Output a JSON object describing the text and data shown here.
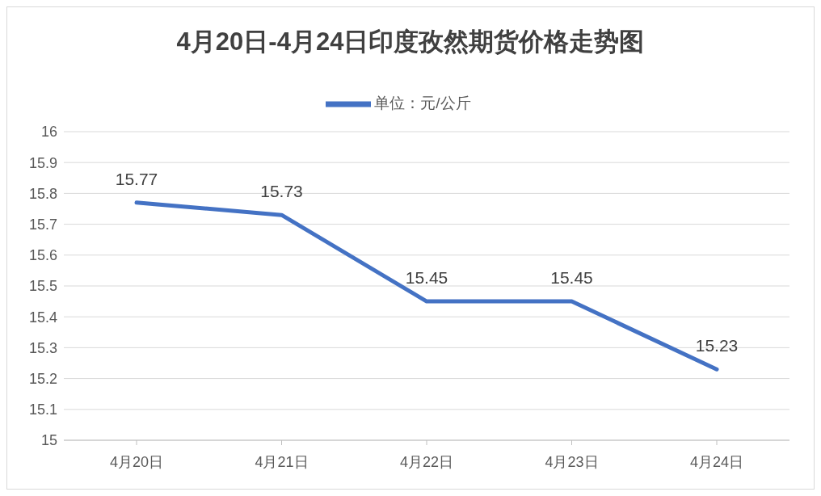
{
  "chart_data": {
    "type": "line",
    "title": "4月20日-4月24日印度孜然期货价格走势图",
    "categories": [
      "4月20日",
      "4月21日",
      "4月22日",
      "4月23日",
      "4月24日"
    ],
    "series": [
      {
        "name": "单位：元/公斤",
        "color": "#4472c4",
        "values": [
          15.77,
          15.73,
          15.45,
          15.45,
          15.23
        ]
      }
    ],
    "ylim": [
      15,
      16
    ],
    "yticks": [
      15,
      15.1,
      15.2,
      15.3,
      15.4,
      15.5,
      15.6,
      15.7,
      15.8,
      15.9,
      16
    ],
    "grid": "y",
    "legend": "top",
    "data_labels": true,
    "marker": "none",
    "line_style": "solid"
  }
}
